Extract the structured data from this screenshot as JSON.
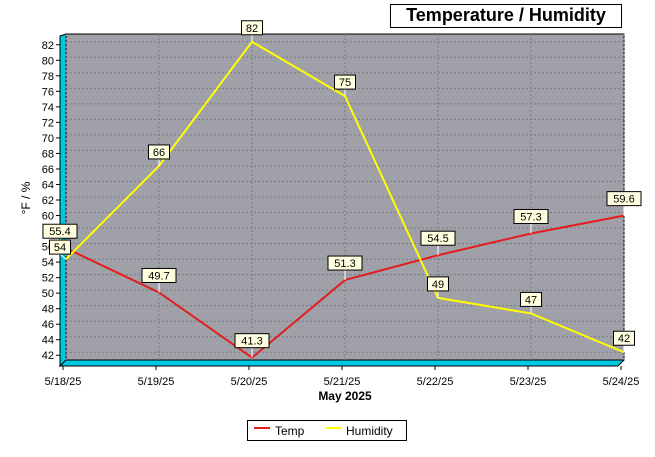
{
  "chart_data": {
    "type": "line",
    "title": "Temperature / Humidity",
    "xlabel": "May 2025",
    "ylabel": "°F / %",
    "categories": [
      "5/18/25",
      "5/19/25",
      "5/20/25",
      "5/21/25",
      "5/22/25",
      "5/23/25",
      "5/24/25"
    ],
    "ylim": [
      41,
      83
    ],
    "yticks": [
      42,
      44,
      46,
      48,
      50,
      52,
      54,
      56,
      58,
      60,
      62,
      64,
      66,
      68,
      70,
      72,
      74,
      76,
      78,
      80,
      82
    ],
    "grid": true,
    "legend_position": "bottom-center",
    "series": [
      {
        "name": "Temp",
        "color": "#e41c1c",
        "values": [
          55.4,
          49.7,
          41.3,
          51.3,
          54.5,
          57.3,
          59.6
        ],
        "labels": [
          "55.4",
          "49.7",
          "41.3",
          "51.3",
          "54.5",
          "57.3",
          "59.6"
        ]
      },
      {
        "name": "Humidity",
        "color": "#ffff00",
        "values": [
          54,
          66,
          82,
          75,
          49,
          47,
          42
        ],
        "labels": [
          "54",
          "66",
          "82",
          "75",
          "49",
          "47",
          "42"
        ]
      }
    ],
    "colors": {
      "plot_background": "#a0a0a8",
      "axis_wall": "#00c8e0",
      "grid": "#7a7a80"
    }
  }
}
